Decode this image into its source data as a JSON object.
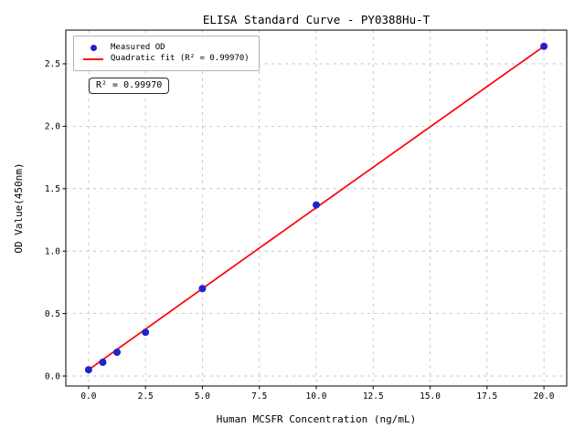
{
  "title": "ELISA Standard Curve - PY0388Hu-T",
  "annotation": "R² = 0.99970",
  "legend": {
    "measured_label": "Measured OD",
    "fit_label": "Quadratic fit (R² = 0.99970)"
  },
  "colors": {
    "point": "#2222cc",
    "fit_line": "#ff0000",
    "grid": "#bbbbbb",
    "frame": "#000000"
  },
  "chart_data": {
    "type": "scatter",
    "title": "ELISA Standard Curve - PY0388Hu-T",
    "xlabel": "Human MCSFR Concentration (ng/mL)",
    "ylabel": "OD Value(450nm)",
    "xlim": [
      -1,
      21
    ],
    "ylim": [
      -0.08,
      2.77
    ],
    "x_ticks": [
      0.0,
      2.5,
      5.0,
      7.5,
      10.0,
      12.5,
      15.0,
      17.5,
      20.0
    ],
    "y_ticks": [
      0.0,
      0.5,
      1.0,
      1.5,
      2.0,
      2.5
    ],
    "grid": true,
    "legend_position": "upper left",
    "series": [
      {
        "name": "Measured OD",
        "type": "scatter",
        "x": [
          0,
          0.625,
          1.25,
          2.5,
          5,
          10,
          20
        ],
        "y": [
          0.05,
          0.11,
          0.19,
          0.35,
          0.7,
          1.37,
          2.64
        ]
      },
      {
        "name": "Quadratic fit (R² = 0.99970)",
        "type": "line",
        "fit": "quadratic",
        "r_squared": 0.9997,
        "coefficients": {
          "a": -3.33e-05,
          "b": 0.13017,
          "c": 0.05
        },
        "x_range": [
          0,
          20
        ]
      }
    ]
  }
}
